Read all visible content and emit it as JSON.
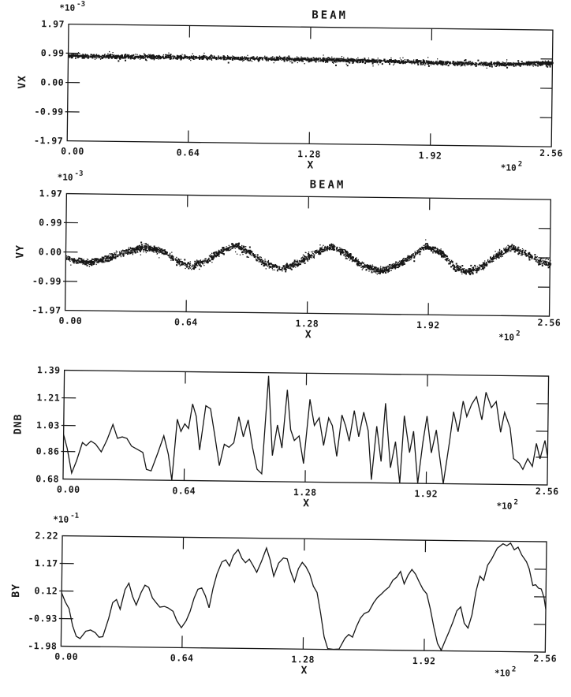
{
  "page": {
    "background": "#ffffff",
    "ink": "#161616"
  },
  "chart_data": [
    {
      "id": "vx",
      "type": "scatter",
      "title": "BEAM",
      "xlabel": "X",
      "ylabel": "VX",
      "y_scale": {
        "text": "*10",
        "exp": "-3"
      },
      "x_scale": {
        "text": "*10",
        "exp": "2"
      },
      "xlim": [
        0,
        2.56
      ],
      "ylim": [
        -1.97,
        1.97
      ],
      "xticks": {
        "values": [
          0,
          0.64,
          1.28,
          1.92,
          2.56
        ],
        "labels": [
          "0.00",
          "0.64",
          "1.28",
          "1.92",
          "2.56"
        ]
      },
      "yticks": {
        "values": [
          1.97,
          0.99,
          0,
          -0.99,
          -1.97
        ],
        "labels": [
          "1.97",
          "0.99",
          "0.00",
          "-0.99",
          "-1.97"
        ]
      },
      "scatter": {
        "n": 2600,
        "seed": 42,
        "halfwidth": 0.08,
        "outlier_frac": 0.1,
        "outlier_mult": 2.6,
        "centerline": [
          [
            0,
            0.91
          ],
          [
            0.2,
            0.915
          ],
          [
            0.5,
            0.92
          ],
          [
            0.8,
            0.915
          ],
          [
            1.1,
            0.905
          ],
          [
            1.4,
            0.89
          ],
          [
            1.7,
            0.865
          ],
          [
            1.95,
            0.84
          ],
          [
            2.15,
            0.815
          ],
          [
            2.3,
            0.81
          ],
          [
            2.45,
            0.845
          ],
          [
            2.56,
            0.875
          ]
        ]
      },
      "solid_segments": [
        [
          0,
          0.1,
          0.905
        ],
        [
          2.42,
          2.56,
          0.87
        ]
      ]
    },
    {
      "id": "vy",
      "type": "scatter",
      "title": "BEAM",
      "xlabel": "X",
      "ylabel": "VY",
      "y_scale": {
        "text": "*10",
        "exp": "-3"
      },
      "x_scale": {
        "text": "*10",
        "exp": "2"
      },
      "xlim": [
        0,
        2.56
      ],
      "ylim": [
        -1.97,
        1.97
      ],
      "xticks": {
        "values": [
          0,
          0.64,
          1.28,
          1.92,
          2.56
        ],
        "labels": [
          "0.00",
          "0.64",
          "1.28",
          "1.92",
          "2.56"
        ]
      },
      "yticks": {
        "values": [
          1.97,
          0.99,
          0,
          -0.99,
          -1.97
        ],
        "labels": [
          "1.97",
          "0.99",
          "0.00",
          "-0.99",
          "-1.97"
        ]
      },
      "scatter": {
        "n": 2800,
        "seed": 1337,
        "halfwidth": 0.13,
        "outlier_frac": 0.12,
        "outlier_mult": 2.2,
        "centerline": [
          [
            0,
            -0.15
          ],
          [
            0.06,
            -0.28
          ],
          [
            0.12,
            -0.33
          ],
          [
            0.2,
            -0.22
          ],
          [
            0.3,
            0.02
          ],
          [
            0.42,
            0.22
          ],
          [
            0.52,
            0.05
          ],
          [
            0.6,
            -0.28
          ],
          [
            0.66,
            -0.4
          ],
          [
            0.74,
            -0.22
          ],
          [
            0.82,
            0.12
          ],
          [
            0.89,
            0.3
          ],
          [
            0.97,
            0.1
          ],
          [
            1.05,
            -0.28
          ],
          [
            1.14,
            -0.45
          ],
          [
            1.22,
            -0.28
          ],
          [
            1.31,
            0.08
          ],
          [
            1.39,
            0.33
          ],
          [
            1.47,
            0.12
          ],
          [
            1.56,
            -0.3
          ],
          [
            1.66,
            -0.5
          ],
          [
            1.75,
            -0.3
          ],
          [
            1.83,
            0.05
          ],
          [
            1.9,
            0.36
          ],
          [
            1.98,
            0.15
          ],
          [
            2.05,
            -0.3
          ],
          [
            2.12,
            -0.52
          ],
          [
            2.2,
            -0.3
          ],
          [
            2.28,
            0.1
          ],
          [
            2.35,
            0.38
          ],
          [
            2.43,
            0.15
          ],
          [
            2.5,
            -0.1
          ],
          [
            2.56,
            -0.18
          ]
        ]
      },
      "solid_segments": []
    },
    {
      "id": "dnb",
      "type": "line",
      "title": "",
      "xlabel": "X",
      "ylabel": "DNB",
      "x_scale": {
        "text": "*10",
        "exp": "2"
      },
      "xlim": [
        0,
        2.56
      ],
      "ylim": [
        0.68,
        1.39
      ],
      "xticks": {
        "values": [
          0,
          0.64,
          1.28,
          1.92,
          2.56
        ],
        "labels": [
          "0.00",
          "0.64",
          "1.28",
          "1.92",
          "2.56"
        ]
      },
      "yticks": {
        "values": [
          1.39,
          1.21,
          1.03,
          0.86,
          0.68
        ],
        "labels": [
          "1.39",
          "1.21",
          "1.03",
          "0.86",
          "0.68"
        ]
      },
      "points": [
        [
          0,
          0.97
        ],
        [
          0.02,
          0.88
        ],
        [
          0.045,
          0.72
        ],
        [
          0.07,
          0.8
        ],
        [
          0.1,
          0.92
        ],
        [
          0.12,
          0.9
        ],
        [
          0.145,
          0.93
        ],
        [
          0.17,
          0.91
        ],
        [
          0.2,
          0.86
        ],
        [
          0.23,
          0.94
        ],
        [
          0.26,
          1.04
        ],
        [
          0.285,
          0.95
        ],
        [
          0.31,
          0.96
        ],
        [
          0.335,
          0.95
        ],
        [
          0.36,
          0.9
        ],
        [
          0.39,
          0.88
        ],
        [
          0.42,
          0.86
        ],
        [
          0.44,
          0.75
        ],
        [
          0.465,
          0.74
        ],
        [
          0.5,
          0.86
        ],
        [
          0.53,
          0.97
        ],
        [
          0.555,
          0.85
        ],
        [
          0.575,
          0.68
        ],
        [
          0.6,
          1.08
        ],
        [
          0.62,
          1.0
        ],
        [
          0.64,
          1.05
        ],
        [
          0.66,
          1.02
        ],
        [
          0.68,
          1.18
        ],
        [
          0.7,
          1.1
        ],
        [
          0.72,
          0.88
        ],
        [
          0.75,
          1.17
        ],
        [
          0.775,
          1.15
        ],
        [
          0.8,
          0.97
        ],
        [
          0.825,
          0.78
        ],
        [
          0.85,
          0.92
        ],
        [
          0.875,
          0.9
        ],
        [
          0.9,
          0.93
        ],
        [
          0.925,
          1.1
        ],
        [
          0.95,
          0.97
        ],
        [
          0.975,
          1.08
        ],
        [
          1.0,
          0.9
        ],
        [
          1.025,
          0.76
        ],
        [
          1.05,
          0.73
        ],
        [
          1.08,
          1.37
        ],
        [
          1.105,
          0.85
        ],
        [
          1.13,
          1.05
        ],
        [
          1.155,
          0.9
        ],
        [
          1.18,
          1.28
        ],
        [
          1.2,
          1.02
        ],
        [
          1.22,
          0.95
        ],
        [
          1.245,
          0.98
        ],
        [
          1.27,
          0.8
        ],
        [
          1.3,
          1.22
        ],
        [
          1.325,
          1.05
        ],
        [
          1.35,
          1.1
        ],
        [
          1.375,
          0.92
        ],
        [
          1.4,
          1.1
        ],
        [
          1.42,
          1.05
        ],
        [
          1.445,
          0.85
        ],
        [
          1.47,
          1.12
        ],
        [
          1.49,
          1.05
        ],
        [
          1.51,
          0.95
        ],
        [
          1.535,
          1.15
        ],
        [
          1.56,
          0.98
        ],
        [
          1.585,
          1.14
        ],
        [
          1.61,
          1.02
        ],
        [
          1.63,
          0.7
        ],
        [
          1.655,
          1.05
        ],
        [
          1.68,
          0.82
        ],
        [
          1.7,
          1.2
        ],
        [
          1.73,
          0.78
        ],
        [
          1.755,
          0.95
        ],
        [
          1.78,
          0.68
        ],
        [
          1.8,
          1.12
        ],
        [
          1.83,
          0.88
        ],
        [
          1.85,
          1.02
        ],
        [
          1.875,
          0.68
        ],
        [
          1.9,
          0.95
        ],
        [
          1.92,
          1.12
        ],
        [
          1.945,
          0.88
        ],
        [
          1.97,
          1.03
        ],
        [
          1.99,
          0.85
        ],
        [
          2.01,
          0.68
        ],
        [
          2.04,
          0.95
        ],
        [
          2.06,
          1.15
        ],
        [
          2.085,
          1.02
        ],
        [
          2.11,
          1.22
        ],
        [
          2.13,
          1.12
        ],
        [
          2.155,
          1.2
        ],
        [
          2.18,
          1.25
        ],
        [
          2.21,
          1.1
        ],
        [
          2.23,
          1.28
        ],
        [
          2.26,
          1.18
        ],
        [
          2.285,
          1.22
        ],
        [
          2.31,
          1.02
        ],
        [
          2.33,
          1.15
        ],
        [
          2.36,
          1.05
        ],
        [
          2.38,
          0.85
        ],
        [
          2.41,
          0.82
        ],
        [
          2.43,
          0.78
        ],
        [
          2.455,
          0.85
        ],
        [
          2.48,
          0.8
        ],
        [
          2.5,
          0.95
        ],
        [
          2.52,
          0.85
        ],
        [
          2.545,
          0.97
        ],
        [
          2.56,
          0.86
        ]
      ]
    },
    {
      "id": "by",
      "type": "line",
      "title": "",
      "xlabel": "X",
      "ylabel": "BY",
      "y_scale": {
        "text": "*10",
        "exp": "-1"
      },
      "x_scale": {
        "text": "*10",
        "exp": "2"
      },
      "xlim": [
        0,
        2.56
      ],
      "ylim": [
        -1.98,
        2.22
      ],
      "xticks": {
        "values": [
          0,
          0.64,
          1.28,
          1.92,
          2.56
        ],
        "labels": [
          "0.00",
          "0.64",
          "1.28",
          "1.92",
          "2.56"
        ]
      },
      "yticks": {
        "values": [
          2.22,
          1.17,
          0.12,
          -0.93,
          -1.98
        ],
        "labels": [
          "2.22",
          "1.17",
          "0.12",
          "-0.93",
          "-1.98"
        ]
      },
      "points": [
        [
          0,
          0.05
        ],
        [
          0.02,
          -0.3
        ],
        [
          0.04,
          -0.55
        ],
        [
          0.06,
          -1.2
        ],
        [
          0.08,
          -1.6
        ],
        [
          0.1,
          -1.68
        ],
        [
          0.13,
          -1.4
        ],
        [
          0.155,
          -1.35
        ],
        [
          0.18,
          -1.45
        ],
        [
          0.2,
          -1.62
        ],
        [
          0.22,
          -1.6
        ],
        [
          0.25,
          -0.9
        ],
        [
          0.27,
          -0.3
        ],
        [
          0.29,
          -0.18
        ],
        [
          0.31,
          -0.55
        ],
        [
          0.335,
          0.2
        ],
        [
          0.355,
          0.45
        ],
        [
          0.375,
          -0.05
        ],
        [
          0.395,
          -0.38
        ],
        [
          0.42,
          0.1
        ],
        [
          0.44,
          0.38
        ],
        [
          0.46,
          0.3
        ],
        [
          0.48,
          -0.1
        ],
        [
          0.5,
          -0.28
        ],
        [
          0.52,
          -0.45
        ],
        [
          0.545,
          -0.42
        ],
        [
          0.565,
          -0.48
        ],
        [
          0.59,
          -0.6
        ],
        [
          0.61,
          -0.95
        ],
        [
          0.635,
          -1.22
        ],
        [
          0.66,
          -0.95
        ],
        [
          0.68,
          -0.6
        ],
        [
          0.7,
          -0.1
        ],
        [
          0.72,
          0.25
        ],
        [
          0.74,
          0.3
        ],
        [
          0.76,
          0.0
        ],
        [
          0.78,
          -0.45
        ],
        [
          0.8,
          0.3
        ],
        [
          0.82,
          0.85
        ],
        [
          0.845,
          1.3
        ],
        [
          0.865,
          1.38
        ],
        [
          0.885,
          1.15
        ],
        [
          0.905,
          1.55
        ],
        [
          0.93,
          1.78
        ],
        [
          0.95,
          1.45
        ],
        [
          0.97,
          1.28
        ],
        [
          0.99,
          1.42
        ],
        [
          1.01,
          1.18
        ],
        [
          1.03,
          0.92
        ],
        [
          1.055,
          1.35
        ],
        [
          1.08,
          1.85
        ],
        [
          1.1,
          1.4
        ],
        [
          1.12,
          0.78
        ],
        [
          1.145,
          1.28
        ],
        [
          1.17,
          1.48
        ],
        [
          1.19,
          1.45
        ],
        [
          1.21,
          0.95
        ],
        [
          1.23,
          0.58
        ],
        [
          1.25,
          1.08
        ],
        [
          1.27,
          1.32
        ],
        [
          1.29,
          1.15
        ],
        [
          1.31,
          0.88
        ],
        [
          1.33,
          0.42
        ],
        [
          1.35,
          0.18
        ],
        [
          1.37,
          -0.6
        ],
        [
          1.39,
          -1.5
        ],
        [
          1.41,
          -1.95
        ],
        [
          1.44,
          -1.97
        ],
        [
          1.47,
          -1.96
        ],
        [
          1.5,
          -1.55
        ],
        [
          1.52,
          -1.4
        ],
        [
          1.54,
          -1.5
        ],
        [
          1.56,
          -1.1
        ],
        [
          1.58,
          -0.78
        ],
        [
          1.6,
          -0.6
        ],
        [
          1.625,
          -0.52
        ],
        [
          1.65,
          -0.18
        ],
        [
          1.67,
          0.02
        ],
        [
          1.69,
          0.15
        ],
        [
          1.71,
          0.3
        ],
        [
          1.73,
          0.42
        ],
        [
          1.75,
          0.68
        ],
        [
          1.77,
          0.8
        ],
        [
          1.79,
          1.02
        ],
        [
          1.81,
          0.55
        ],
        [
          1.83,
          0.88
        ],
        [
          1.85,
          1.1
        ],
        [
          1.87,
          0.92
        ],
        [
          1.89,
          0.62
        ],
        [
          1.91,
          0.35
        ],
        [
          1.93,
          0.18
        ],
        [
          1.95,
          -0.4
        ],
        [
          1.97,
          -1.1
        ],
        [
          1.99,
          -1.7
        ],
        [
          2.01,
          -1.96
        ],
        [
          2.03,
          -1.6
        ],
        [
          2.05,
          -1.25
        ],
        [
          2.07,
          -0.88
        ],
        [
          2.09,
          -0.45
        ],
        [
          2.11,
          -0.3
        ],
        [
          2.13,
          -0.92
        ],
        [
          2.15,
          -1.1
        ],
        [
          2.17,
          -0.6
        ],
        [
          2.19,
          0.3
        ],
        [
          2.21,
          0.88
        ],
        [
          2.23,
          0.72
        ],
        [
          2.25,
          1.3
        ],
        [
          2.27,
          1.52
        ],
        [
          2.3,
          1.95
        ],
        [
          2.33,
          2.12
        ],
        [
          2.35,
          2.05
        ],
        [
          2.37,
          2.15
        ],
        [
          2.39,
          1.9
        ],
        [
          2.41,
          2.0
        ],
        [
          2.43,
          1.7
        ],
        [
          2.455,
          1.45
        ],
        [
          2.47,
          1.18
        ],
        [
          2.49,
          0.55
        ],
        [
          2.505,
          0.58
        ],
        [
          2.52,
          0.45
        ],
        [
          2.535,
          0.42
        ],
        [
          2.55,
          0.1
        ],
        [
          2.56,
          -0.35
        ]
      ]
    }
  ]
}
